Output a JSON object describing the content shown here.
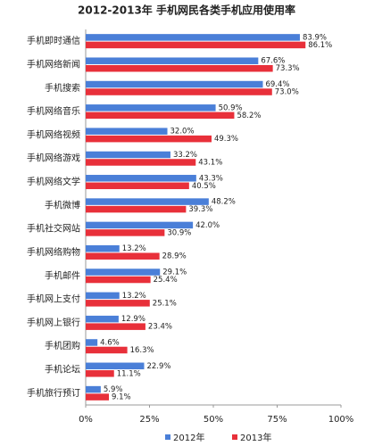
{
  "chart_data": {
    "type": "hbar",
    "title": "2012-2013年 手机网民各类手机应用使用率",
    "categories": [
      "手机即时通信",
      "手机网络新闻",
      "手机搜索",
      "手机网络音乐",
      "手机网络视频",
      "手机网络游戏",
      "手机网络文学",
      "手机微博",
      "手机社交网站",
      "手机网络购物",
      "手机邮件",
      "手机网上支付",
      "手机网上银行",
      "手机团购",
      "手机论坛",
      "手机旅行预订"
    ],
    "series": [
      {
        "name": "2012年",
        "color": "#4a7fd8",
        "values": [
          83.9,
          67.6,
          69.4,
          50.9,
          32.0,
          33.2,
          43.3,
          48.2,
          42.0,
          13.2,
          29.1,
          13.2,
          12.9,
          4.6,
          22.9,
          5.9
        ],
        "value_labels": [
          "83.9%",
          "67.6%",
          "69.4%",
          "50.9%",
          "32.0%",
          "33.2%",
          "43.3%",
          "48.2%",
          "42.0%",
          "13.2%",
          "29.1%",
          "13.2%",
          "12.9%",
          "4.6%",
          "22.9%",
          "5.9%"
        ]
      },
      {
        "name": "2013年",
        "color": "#e8303a",
        "values": [
          86.1,
          73.3,
          73.0,
          58.2,
          49.3,
          43.1,
          40.5,
          39.3,
          30.9,
          28.9,
          25.4,
          25.1,
          23.4,
          16.3,
          11.1,
          9.1
        ],
        "value_labels": [
          "86.1%",
          "73.3%",
          "73.0%",
          "58.2%",
          "49.3%",
          "43.1%",
          "40.5%",
          "39.3%",
          "30.9%",
          "28.9%",
          "25.4%",
          "25.1%",
          "23.4%",
          "16.3%",
          "11.1%",
          "9.1%"
        ]
      }
    ],
    "xlim": [
      0,
      100
    ],
    "xticks": [
      {
        "value": 0,
        "label": "0%"
      },
      {
        "value": 25,
        "label": "25%"
      },
      {
        "value": 50,
        "label": "50%"
      },
      {
        "value": 75,
        "label": "75%"
      },
      {
        "value": 100,
        "label": "100%"
      }
    ],
    "legend": "bottom"
  }
}
